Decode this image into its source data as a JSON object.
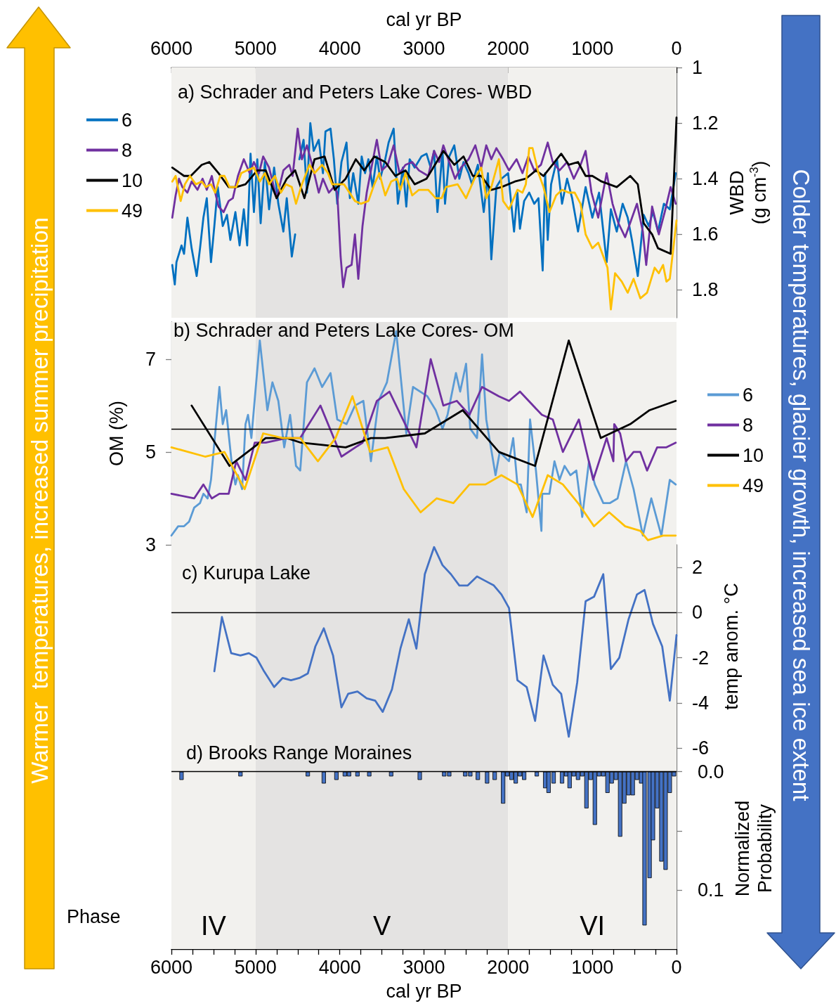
{
  "chart_data": [
    {
      "type": "line",
      "title": "a) Schrader and Peters Lake Cores- WBD",
      "xlabel": "cal yr BP",
      "ylabel": "WBD\n(g cm$^{-3}$)",
      "xlim": [
        6000,
        0
      ],
      "xticks": [
        6000,
        {
          "value": 5750,
          "label": null
        },
        {
          "value": 5500,
          "label": null
        },
        {
          "value": 5250,
          "label": null
        },
        5000,
        {
          "value": 4750,
          "label": null
        },
        {
          "value": 4500,
          "label": null
        },
        {
          "value": 4250,
          "label": null
        },
        4000,
        {
          "value": 3750,
          "label": null
        },
        {
          "value": 3500,
          "label": null
        },
        {
          "value": 3250,
          "label": null
        },
        3000,
        {
          "value": 2750,
          "label": null
        },
        {
          "value": 2500,
          "label": null
        },
        {
          "value": 2250,
          "label": null
        },
        2000,
        {
          "value": 1750,
          "label": null
        },
        {
          "value": 1500,
          "label": null
        },
        {
          "value": 1250,
          "label": null
        },
        1000,
        {
          "value": 750,
          "label": null
        },
        {
          "value": 500,
          "label": null
        },
        {
          "value": 250,
          "label": null
        },
        0
      ],
      "ylim": [
        1.9,
        1
      ],
      "yticks": [
        1,
        1.2,
        1.4,
        1.6,
        1.8
      ],
      "legend": "left",
      "marker": "none",
      "bands": [
        {
          "axis": "x",
          "from": 6000,
          "to": 5000,
          "color": "#f2f1ee"
        },
        {
          "axis": "x",
          "from": 5000,
          "to": 2000,
          "color": "#e4e3e2"
        },
        {
          "axis": "x",
          "from": 2000,
          "to": 0,
          "color": "#f2f1ee"
        }
      ],
      "series": [
        {
          "name": "6",
          "color": "#0070c0",
          "x": [
            5990,
            5960,
            5940,
            5880,
            5850,
            5810,
            5760,
            5700,
            5660,
            5620,
            5580,
            5530,
            5490,
            5450,
            5390,
            5340,
            5300,
            5240,
            5190,
            5140,
            5100,
            5060,
            5020,
            4980,
            4940,
            4890,
            4840,
            4780,
            4730,
            4670,
            4630,
            4570,
            4530,
            4500,
            4480,
            4430,
            4390,
            4350,
            4310,
            4250,
            4200,
            4170,
            4110,
            4070,
            4030,
            3980,
            3920,
            3880,
            3840,
            3780,
            3740,
            3700,
            3660,
            3610,
            3560,
            3520,
            3460,
            3420,
            3360,
            3310,
            3250,
            3210,
            3170,
            3110,
            3030,
            2970,
            2920,
            2880,
            2840,
            2780,
            2750,
            2700,
            2640,
            2580,
            2530,
            2470,
            2430,
            2360,
            2290,
            2240,
            2200,
            2140,
            2080,
            2000,
            1930,
            1890,
            1860,
            1810,
            1750,
            1690,
            1640,
            1590,
            1560,
            1530,
            1490,
            1420,
            1360,
            1300,
            1240,
            1170,
            1080,
            1000,
            920,
            830,
            780,
            710,
            640,
            580,
            530,
            460,
            390,
            330,
            280,
            220,
            150,
            80,
            10
          ],
          "values": [
            1.71,
            1.78,
            1.7,
            1.64,
            1.67,
            1.54,
            1.65,
            1.75,
            1.65,
            1.54,
            1.47,
            1.7,
            1.57,
            1.43,
            1.57,
            1.53,
            1.62,
            1.52,
            1.64,
            1.51,
            1.64,
            1.31,
            1.52,
            1.33,
            1.56,
            1.34,
            1.51,
            1.36,
            1.49,
            1.59,
            1.47,
            1.68,
            1.6,
            null,
            1.33,
            1.26,
            1.45,
            1.2,
            1.3,
            1.26,
            1.38,
            1.23,
            1.22,
            1.33,
            1.49,
            1.34,
            1.27,
            1.47,
            1.38,
            1.49,
            1.32,
            1.38,
            1.33,
            1.43,
            1.32,
            1.4,
            1.33,
            1.27,
            1.22,
            1.49,
            1.36,
            1.5,
            1.33,
            1.36,
            1.32,
            1.31,
            1.36,
            1.3,
            1.52,
            1.3,
            1.49,
            1.32,
            1.28,
            1.4,
            1.34,
            1.38,
            1.42,
            1.35,
            1.52,
            1.38,
            1.69,
            1.43,
            1.4,
            1.38,
            1.59,
            1.45,
            1.58,
            1.48,
            1.45,
            1.49,
            1.47,
            1.73,
            1.38,
            1.62,
            1.42,
            1.33,
            1.49,
            1.4,
            1.47,
            1.59,
            1.43,
            1.54,
            1.45,
            1.7,
            1.51,
            1.59,
            1.49,
            1.54,
            1.62,
            1.75,
            1.53,
            1.57,
            1.52,
            1.59,
            1.49,
            1.51,
            1.38
          ]
        },
        {
          "name": "8",
          "color": "#7030a0",
          "x": [
            5990,
            5950,
            5910,
            5870,
            5810,
            5760,
            5690,
            5630,
            5580,
            5520,
            5480,
            5440,
            5380,
            5320,
            5270,
            5210,
            5140,
            5070,
            5020,
            4960,
            4910,
            4840,
            4750,
            4670,
            4600,
            4560,
            4500,
            4450,
            4390,
            4320,
            4250,
            4200,
            4130,
            4070,
            4030,
            3990,
            3960,
            3920,
            3860,
            3820,
            3780,
            3730,
            3680,
            3630,
            3560,
            3500,
            3430,
            3360,
            3290,
            3220,
            3140,
            3060,
            2950,
            2880,
            2820,
            2770,
            2700,
            2630,
            2560,
            2470,
            2390,
            2320,
            2260,
            2200,
            2140,
            2060,
            1990,
            1900,
            1830,
            1760,
            1690,
            1610,
            1530,
            1470,
            1390,
            1300,
            1220,
            1140,
            1080,
            1010,
            930,
            830,
            760,
            690,
            610,
            540,
            470,
            400,
            360,
            290,
            210,
            140,
            70,
            10
          ],
          "values": [
            1.54,
            1.46,
            1.4,
            1.43,
            1.45,
            1.41,
            1.44,
            1.4,
            1.44,
            1.39,
            1.45,
            1.5,
            1.52,
            1.48,
            1.47,
            1.39,
            1.33,
            1.38,
            1.34,
            1.38,
            1.32,
            1.36,
            1.47,
            1.37,
            1.35,
            1.39,
            1.22,
            1.33,
            1.28,
            1.36,
            1.45,
            1.4,
            1.45,
            1.43,
            1.45,
            1.68,
            1.79,
            1.72,
            1.71,
            1.6,
            1.76,
            1.57,
            1.45,
            1.37,
            1.26,
            1.37,
            1.35,
            1.28,
            1.38,
            1.35,
            1.34,
            1.37,
            1.39,
            1.3,
            1.34,
            1.28,
            1.34,
            1.4,
            1.36,
            1.33,
            1.28,
            1.36,
            1.28,
            1.33,
            1.29,
            1.33,
            1.37,
            1.33,
            1.38,
            1.32,
            1.37,
            1.35,
            1.27,
            1.34,
            1.37,
            1.34,
            1.4,
            1.35,
            1.3,
            1.45,
            1.54,
            1.38,
            1.49,
            1.56,
            1.61,
            1.55,
            1.49,
            1.59,
            1.71,
            1.5,
            1.6,
            1.52,
            1.43,
            1.49
          ]
        },
        {
          "name": "10",
          "color": "#000000",
          "x": [
            5990,
            5850,
            5770,
            5640,
            5550,
            5440,
            5320,
            5230,
            5120,
            4980,
            4880,
            4750,
            4630,
            4530,
            4420,
            4300,
            4180,
            4060,
            3930,
            3810,
            3710,
            3590,
            3460,
            3340,
            3220,
            3110,
            2970,
            2770,
            2640,
            2530,
            2420,
            2320,
            2200,
            2080,
            1920,
            1790,
            1670,
            1580,
            1370,
            1280,
            1170,
            1080,
            1000,
            890,
            800,
            710,
            550,
            460,
            390,
            290,
            220,
            70,
            0
          ],
          "values": [
            1.36,
            1.39,
            1.39,
            1.35,
            1.34,
            1.38,
            1.43,
            1.43,
            1.42,
            1.37,
            1.37,
            1.47,
            1.4,
            1.37,
            1.47,
            1.33,
            1.32,
            1.44,
            1.4,
            1.33,
            1.37,
            1.32,
            1.34,
            1.39,
            1.37,
            1.42,
            1.4,
            1.3,
            1.35,
            1.32,
            1.39,
            1.39,
            1.44,
            1.43,
            1.41,
            1.4,
            1.37,
            1.39,
            1.31,
            1.35,
            1.34,
            1.39,
            1.39,
            1.41,
            1.42,
            1.43,
            1.39,
            1.42,
            1.56,
            1.6,
            1.65,
            1.67,
            1.18
          ]
        },
        {
          "name": "49",
          "color": "#ffc000",
          "x": [
            5990,
            5950,
            5890,
            5840,
            5780,
            5710,
            5640,
            5590,
            5530,
            5480,
            5420,
            5370,
            5310,
            5230,
            5170,
            5100,
            5020,
            4950,
            4890,
            4840,
            4770,
            4700,
            4640,
            4570,
            4520,
            4450,
            4360,
            4300,
            4210,
            4140,
            4090,
            3950,
            3820,
            3750,
            3660,
            3590,
            3530,
            3460,
            3390,
            3320,
            3280,
            3220,
            3140,
            3060,
            2950,
            2860,
            2790,
            2740,
            2600,
            2500,
            2400,
            2320,
            2260,
            2200,
            2110,
            2060,
            1990,
            1890,
            1830,
            1790,
            1750,
            1710,
            1640,
            1580,
            1510,
            1430,
            1360,
            1280,
            1210,
            1140,
            1080,
            1000,
            930,
            820,
            780,
            730,
            650,
            580,
            510,
            430,
            350,
            260,
            210,
            160,
            120,
            80,
            0
          ],
          "values": [
            1.41,
            1.39,
            1.48,
            1.42,
            1.39,
            1.42,
            1.41,
            1.43,
            1.42,
            1.45,
            1.39,
            1.39,
            1.43,
            1.43,
            1.38,
            1.37,
            1.36,
            1.41,
            1.38,
            1.42,
            1.39,
            1.45,
            1.42,
            1.43,
            1.49,
            1.42,
            1.35,
            1.38,
            1.35,
            1.38,
            1.42,
            1.42,
            1.48,
            1.49,
            1.48,
            1.42,
            1.38,
            1.46,
            1.41,
            1.4,
            1.44,
            1.38,
            1.46,
            1.44,
            1.44,
            1.47,
            1.47,
            1.43,
            1.42,
            1.47,
            1.4,
            1.36,
            1.47,
            1.43,
            1.33,
            1.48,
            1.51,
            1.44,
            1.45,
            1.42,
            1.29,
            1.29,
            1.38,
            1.43,
            1.52,
            1.46,
            1.44,
            1.45,
            1.45,
            1.49,
            1.6,
            1.65,
            1.63,
            1.72,
            1.87,
            1.74,
            1.77,
            1.81,
            1.76,
            1.83,
            1.81,
            1.72,
            1.74,
            1.71,
            1.77,
            1.76,
            1.55
          ]
        }
      ]
    },
    {
      "type": "line",
      "title": "b) Schrader and Peters Lake Cores- OM",
      "ylabel": "OM (%)",
      "xlim": [
        6000,
        0
      ],
      "ylim": [
        3,
        7.8
      ],
      "yticks": [
        3,
        5,
        7
      ],
      "tick_labels": "y",
      "legend": "right",
      "marker": "none",
      "ref_lines": [
        {
          "axis": "y",
          "value": 5.5
        }
      ],
      "bands": [
        {
          "axis": "x",
          "from": 6000,
          "to": 5000,
          "color": "#f2f1ee"
        },
        {
          "axis": "x",
          "from": 5000,
          "to": 2000,
          "color": "#e4e3e2"
        },
        {
          "axis": "x",
          "from": 2000,
          "to": 0,
          "color": "#f2f1ee"
        }
      ],
      "series": [
        {
          "name": "6",
          "color": "#5b9bd5",
          "x": [
            6000,
            5920,
            5850,
            5790,
            5730,
            5660,
            5620,
            5570,
            5530,
            5430,
            5390,
            5350,
            5280,
            5240,
            5210,
            5160,
            5120,
            5090,
            5050,
            4950,
            4860,
            4800,
            4730,
            4660,
            4590,
            4520,
            4470,
            4390,
            4300,
            4210,
            4110,
            4030,
            3920,
            3820,
            3720,
            3630,
            3540,
            3440,
            3330,
            3210,
            3130,
            2960,
            2860,
            2780,
            2720,
            2620,
            2570,
            2500,
            2450,
            2370,
            2310,
            2260,
            2150,
            2100,
            1990,
            1940,
            1890,
            1850,
            1780,
            1740,
            1670,
            1605,
            1595,
            1510,
            1450,
            1390,
            1330,
            1260,
            1190,
            1120,
            1040,
            970,
            870,
            790,
            700,
            600,
            510,
            400,
            300,
            180,
            80,
            10
          ],
          "values": [
            3.2,
            3.4,
            3.4,
            3.5,
            3.8,
            3.9,
            4.1,
            4.0,
            4.4,
            6.4,
            5.6,
            5.9,
            4.7,
            4.3,
            4.5,
            4.2,
            5.6,
            5.8,
            5.3,
            7.4,
            5.9,
            6.5,
            6.1,
            5.1,
            5.8,
            4.7,
            4.6,
            6.5,
            6.8,
            6.4,
            6.7,
            5.7,
            5.6,
            6.0,
            6.1,
            4.8,
            6.1,
            6.5,
            7.6,
            5.4,
            6.4,
            6.2,
            5.9,
            5.5,
            5.8,
            6.7,
            6.3,
            6.9,
            5.5,
            5.3,
            7.1,
            5.7,
            4.5,
            5.0,
            4.8,
            5.3,
            4.3,
            4.3,
            3.7,
            5.7,
            4.6,
            3.3,
            4.1,
            4.1,
            4.8,
            4.4,
            4.7,
            4.5,
            4.6,
            3.6,
            4.8,
            4.3,
            3.9,
            3.9,
            4.0,
            4.8,
            4.2,
            3.2,
            4.0,
            3.2,
            4.4,
            4.3
          ]
        },
        {
          "name": "8",
          "color": "#7030a0",
          "x": [
            6000,
            5730,
            5620,
            5520,
            5430,
            5320,
            5230,
            5120,
            5010,
            4880,
            4630,
            4470,
            4230,
            3980,
            3730,
            3560,
            3410,
            3090,
            2920,
            2770,
            2610,
            2460,
            2310,
            2110,
            1990,
            1860,
            1600,
            1470,
            1350,
            1160,
            990,
            830,
            750,
            740,
            670,
            600,
            510,
            430,
            350,
            230,
            120,
            10
          ],
          "values": [
            4.1,
            4.0,
            4.3,
            4.0,
            4.1,
            4.1,
            4.8,
            4.4,
            5.2,
            5.2,
            5.3,
            5.3,
            6.0,
            4.9,
            5.2,
            6.1,
            6.3,
            5.1,
            7.0,
            6.0,
            6.1,
            5.8,
            6.4,
            6.2,
            6.1,
            6.3,
            5.8,
            5.7,
            5.0,
            5.7,
            4.4,
            5.3,
            4.8,
            5.6,
            5.4,
            4.8,
            5.0,
            5.0,
            4.6,
            5.1,
            5.1,
            5.2
          ]
        },
        {
          "name": "10",
          "color": "#000000",
          "x": [
            5760,
            5310,
            4880,
            4630,
            4460,
            3930,
            3630,
            3460,
            2990,
            2540,
            2110,
            1680,
            1280,
            900,
            550,
            320,
            10
          ],
          "values": [
            6.0,
            4.7,
            5.3,
            5.3,
            5.2,
            5.1,
            5.3,
            5.3,
            5.4,
            5.9,
            5.0,
            4.7,
            7.4,
            5.3,
            5.6,
            5.9,
            6.1
          ]
        },
        {
          "name": "49",
          "color": "#ffc000",
          "x": [
            6000,
            5600,
            5370,
            5130,
            4910,
            4680,
            4470,
            4260,
            4050,
            3850,
            3640,
            3430,
            3240,
            3040,
            2850,
            2650,
            2460,
            2270,
            2080,
            1890,
            1710,
            1530,
            1350,
            1170,
            980,
            800,
            610,
            430,
            340,
            160,
            10
          ],
          "values": [
            5.1,
            4.9,
            5.0,
            4.2,
            5.4,
            5.3,
            5.3,
            4.8,
            5.3,
            6.2,
            5.0,
            5.1,
            4.2,
            3.7,
            4.0,
            3.9,
            4.3,
            4.3,
            4.5,
            4.3,
            3.6,
            4.5,
            4.3,
            3.9,
            3.4,
            3.7,
            3.4,
            3.3,
            3.1,
            3.2,
            3.2
          ]
        }
      ]
    },
    {
      "type": "line",
      "title": "c) Kurupa Lake",
      "ylabel": "temp anom. °C",
      "xlim": [
        6000,
        0
      ],
      "ylim": [
        -6,
        3
      ],
      "yticks": [
        -6,
        -4,
        -2,
        0,
        2
      ],
      "tick_labels": "y",
      "marker": "none",
      "color": "#4472c4",
      "ref_lines": [
        {
          "axis": "y",
          "value": 0
        }
      ],
      "bands": [
        {
          "axis": "x",
          "from": 6000,
          "to": 5000,
          "color": "#f2f1ee"
        },
        {
          "axis": "x",
          "from": 5000,
          "to": 2000,
          "color": "#e4e3e2"
        },
        {
          "axis": "x",
          "from": 2000,
          "to": 0,
          "color": "#f2f1ee"
        }
      ],
      "x": [
        5490,
        5400,
        5290,
        5180,
        5080,
        4990,
        4900,
        4780,
        4680,
        4580,
        4480,
        4380,
        4290,
        4190,
        4080,
        3980,
        3900,
        3790,
        3680,
        3580,
        3490,
        3380,
        3280,
        3180,
        3090,
        2990,
        2880,
        2780,
        2680,
        2580,
        2480,
        2370,
        2270,
        2170,
        2080,
        1990,
        1890,
        1780,
        1680,
        1580,
        1470,
        1370,
        1280,
        1180,
        1080,
        980,
        870,
        780,
        680,
        570,
        470,
        380,
        280,
        170,
        80,
        0
      ],
      "values": [
        -2.6,
        -0.2,
        -1.8,
        -1.9,
        -1.8,
        -2.0,
        -2.6,
        -3.3,
        -2.9,
        -3.0,
        -2.9,
        -2.7,
        -1.5,
        -0.7,
        -1.9,
        -4.2,
        -3.6,
        -3.5,
        -3.8,
        -3.9,
        -4.4,
        -3.4,
        -1.6,
        -0.3,
        -1.6,
        1.7,
        2.9,
        2.1,
        1.7,
        1.2,
        1.2,
        1.6,
        1.4,
        1.2,
        0.8,
        0.2,
        -3.0,
        -3.3,
        -4.8,
        -1.9,
        -3.2,
        -3.6,
        -5.5,
        -3.1,
        0.5,
        0.7,
        1.7,
        -2.5,
        -2.0,
        -0.3,
        0.8,
        1.0,
        -0.5,
        -1.5,
        -3.9,
        -1.0
      ]
    },
    {
      "type": "bar",
      "title": "d) Brooks Range Moraines",
      "xlabel": "cal yr BP",
      "ylabel": "Normalized\nProbability",
      "xlim": [
        6000,
        0
      ],
      "xticks": [
        6000,
        {
          "value": 5750,
          "label": null
        },
        {
          "value": 5500,
          "label": null
        },
        {
          "value": 5250,
          "label": null
        },
        5000,
        {
          "value": 4750,
          "label": null
        },
        {
          "value": 4500,
          "label": null
        },
        {
          "value": 4250,
          "label": null
        },
        4000,
        {
          "value": 3750,
          "label": null
        },
        {
          "value": 3500,
          "label": null
        },
        {
          "value": 3250,
          "label": null
        },
        3000,
        {
          "value": 2750,
          "label": null
        },
        {
          "value": 2500,
          "label": null
        },
        {
          "value": 2250,
          "label": null
        },
        2000,
        {
          "value": 1750,
          "label": null
        },
        {
          "value": 1500,
          "label": null
        },
        {
          "value": 1250,
          "label": null
        },
        1000,
        {
          "value": 750,
          "label": null
        },
        {
          "value": 500,
          "label": null
        },
        {
          "value": 250,
          "label": null
        },
        0
      ],
      "ylim": [
        0.15,
        -0.02
      ],
      "yticks": [
        {
          "value": 0,
          "label": "0.0"
        },
        {
          "value": 0.05,
          "label": null
        },
        {
          "value": 0.1,
          "label": "0.1"
        }
      ],
      "color": "#4472c4",
      "annotations": [
        "Phase"
      ],
      "ref_lines": [
        {
          "axis": "y",
          "value": 0
        }
      ],
      "bands": [
        {
          "axis": "x",
          "from": 6000,
          "to": 5000,
          "color": "#f2f1ee",
          "label": "IV"
        },
        {
          "axis": "x",
          "from": 5000,
          "to": 2000,
          "color": "#e4e3e2",
          "label": "V"
        },
        {
          "axis": "x",
          "from": 2000,
          "to": 0,
          "color": "#f2f1ee",
          "label": "VI"
        }
      ],
      "x": [
        5880,
        5180,
        4380,
        4190,
        4040,
        3940,
        3890,
        3790,
        3650,
        3390,
        3050,
        2760,
        2700,
        2510,
        2450,
        2360,
        2250,
        2160,
        2060,
        2010,
        1960,
        1910,
        1860,
        1810,
        1660,
        1560,
        1520,
        1460,
        1360,
        1310,
        1270,
        1220,
        1170,
        1120,
        1070,
        1020,
        970,
        920,
        870,
        820,
        770,
        720,
        670,
        620,
        570,
        520,
        470,
        420,
        380,
        320,
        280,
        230,
        180,
        130,
        80,
        30
      ],
      "values": [
        0.007,
        0.004,
        0.004,
        0.01,
        0.007,
        0.004,
        0.004,
        0.004,
        0.004,
        0.004,
        0.007,
        0.004,
        0.004,
        0.004,
        0.004,
        0.007,
        0.01,
        0.007,
        0.027,
        0.004,
        0.007,
        0.01,
        0.004,
        0.007,
        0.004,
        0.014,
        0.018,
        0.01,
        0.01,
        0.004,
        0.014,
        0.004,
        0.007,
        0.004,
        0.031,
        0.007,
        0.045,
        0.004,
        0.004,
        0.018,
        0.01,
        0.007,
        0.055,
        0.027,
        0.02,
        0.02,
        0.007,
        0.01,
        0.13,
        0.09,
        0.058,
        0.031,
        0.076,
        0.083,
        0.018,
        0.004
      ]
    },
    {
      "type": "other",
      "annotations": [
        "Warmer  temperatures, increased summer precipitation",
        "Colder temperatures, glacier growth, increased sea ice extent"
      ]
    }
  ]
}
